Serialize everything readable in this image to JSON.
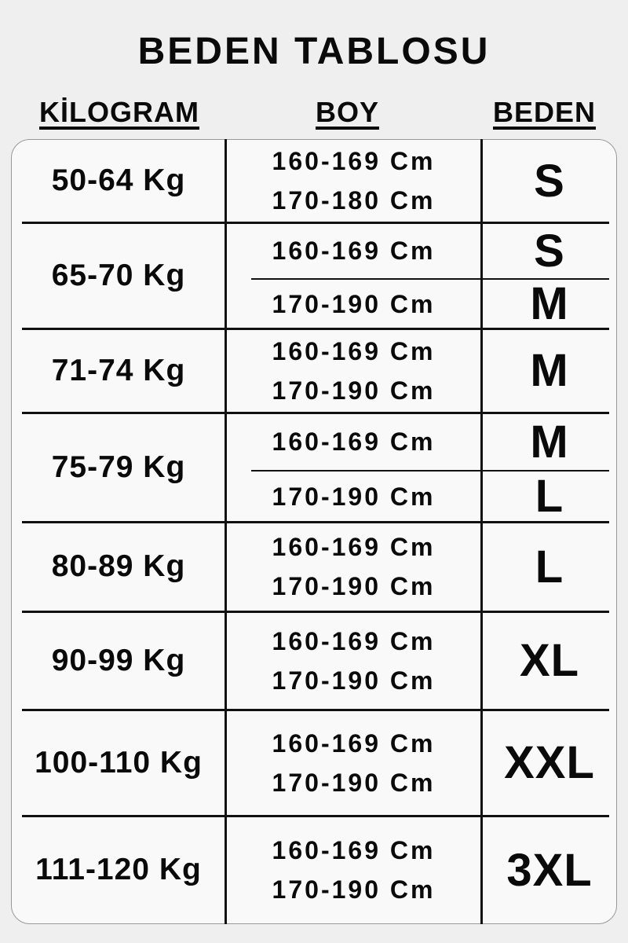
{
  "title": "BEDEN TABLOSU",
  "headers": {
    "kilogram": "KİLOGRAM",
    "boy": "BOY",
    "beden": "BEDEN"
  },
  "rows": [
    {
      "kg": "50-64 Kg",
      "split": false,
      "boy": [
        "160-169 Cm",
        "170-180 Cm"
      ],
      "sizes": [
        "S"
      ]
    },
    {
      "kg": "65-70 Kg",
      "split": true,
      "boy": [
        "160-169 Cm",
        "170-190 Cm"
      ],
      "sizes": [
        "S",
        "M"
      ]
    },
    {
      "kg": "71-74 Kg",
      "split": false,
      "boy": [
        "160-169 Cm",
        "170-190 Cm"
      ],
      "sizes": [
        "M"
      ]
    },
    {
      "kg": "75-79 Kg",
      "split": true,
      "boy": [
        "160-169 Cm",
        "170-190 Cm"
      ],
      "sizes": [
        "M",
        "L"
      ]
    },
    {
      "kg": "80-89 Kg",
      "split": false,
      "boy": [
        "160-169 Cm",
        "170-190 Cm"
      ],
      "sizes": [
        "L"
      ]
    },
    {
      "kg": "90-99 Kg",
      "split": false,
      "boy": [
        "160-169 Cm",
        "170-190 Cm"
      ],
      "sizes": [
        "XL"
      ]
    },
    {
      "kg": "100-110 Kg",
      "split": false,
      "boy": [
        "160-169 Cm",
        "170-190 Cm"
      ],
      "sizes": [
        "XXL"
      ]
    },
    {
      "kg": "111-120 Kg",
      "split": false,
      "boy": [
        "160-169 Cm",
        "170-190 Cm"
      ],
      "sizes": [
        "3XL"
      ]
    }
  ]
}
